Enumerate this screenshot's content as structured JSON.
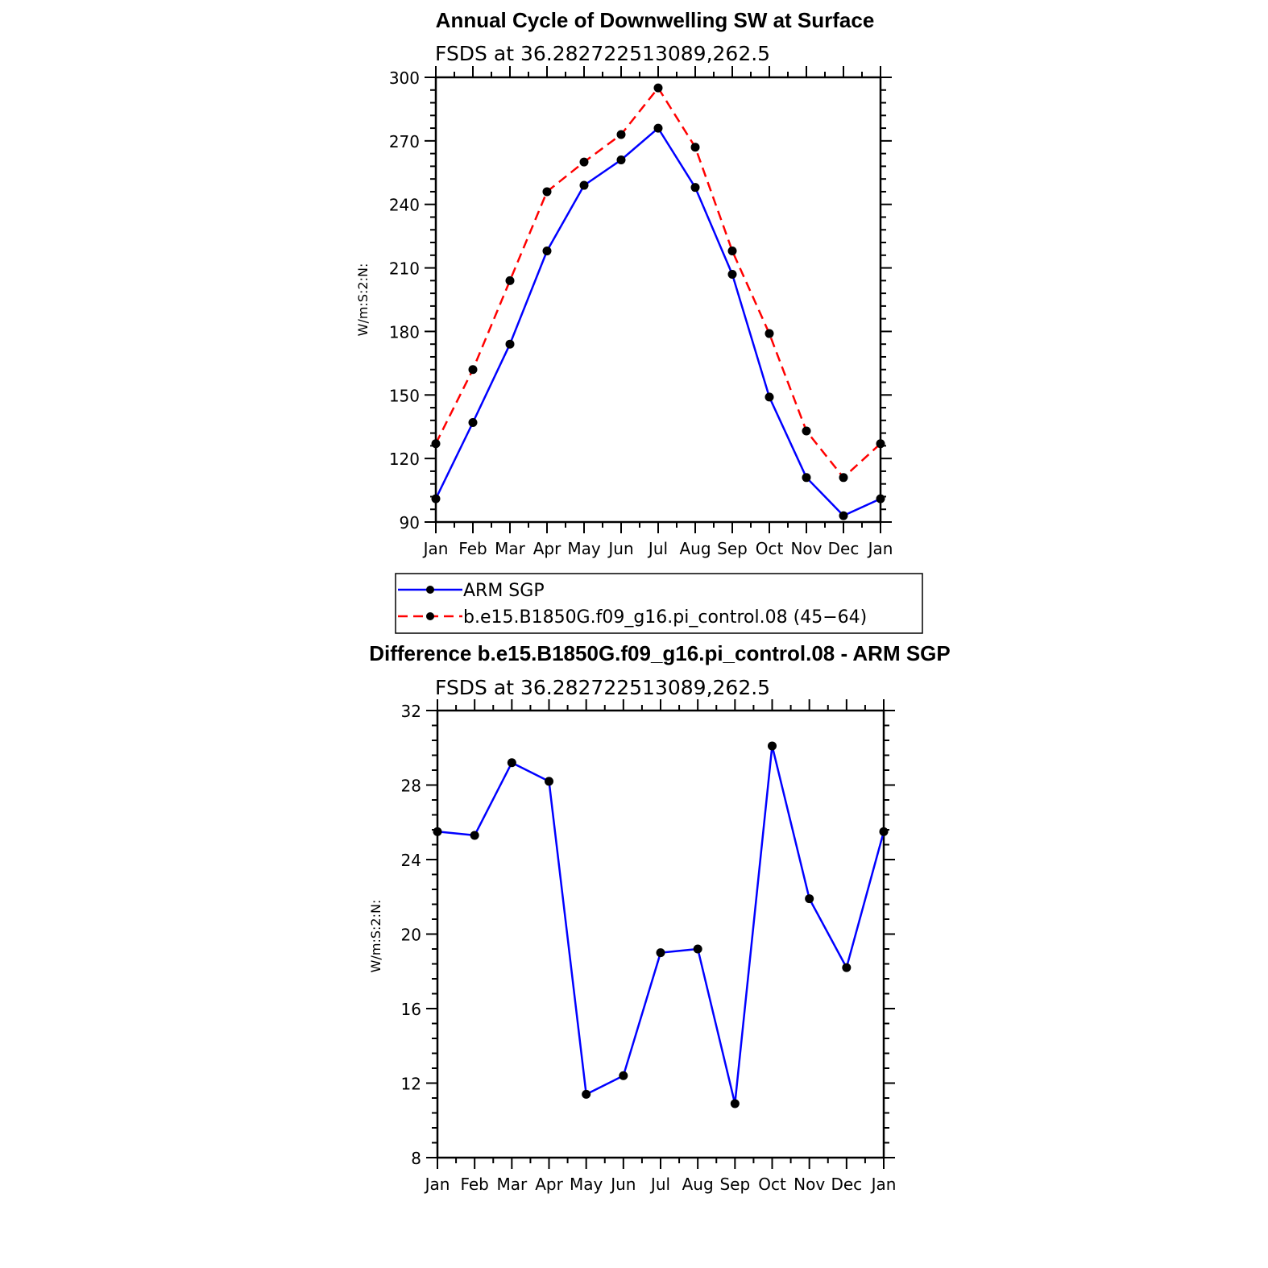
{
  "chart_data": [
    {
      "type": "line",
      "title": "Annual Cycle of Downwelling SW at Surface",
      "subtitle": "FSDS at 36.282722513089,262.5",
      "ylabel": "W/m:S:2:N:",
      "xlabel": "",
      "categories": [
        "Jan",
        "Feb",
        "Mar",
        "Apr",
        "May",
        "Jun",
        "Jul",
        "Aug",
        "Sep",
        "Oct",
        "Nov",
        "Dec",
        "Jan"
      ],
      "ylim": [
        90,
        300
      ],
      "yticks": [
        90,
        120,
        150,
        180,
        210,
        240,
        270,
        300
      ],
      "grid": false,
      "legend_position": "below",
      "series": [
        {
          "name": "ARM SGP",
          "color": "#0000ff",
          "dash": "solid",
          "marker": "circle",
          "values": [
            101,
            137,
            174,
            218,
            249,
            261,
            276,
            248,
            207,
            149,
            111,
            93,
            101
          ]
        },
        {
          "name": "b.e15.B1850G.f09_g16.pi_control.08 (45−64)",
          "color": "#ff0000",
          "dash": "dashed",
          "marker": "circle",
          "values": [
            127,
            162,
            204,
            246,
            260,
            273,
            295,
            267,
            218,
            179,
            133,
            111,
            127
          ]
        }
      ]
    },
    {
      "type": "line",
      "title": "Difference b.e15.B1850G.f09_g16.pi_control.08 - ARM SGP",
      "subtitle": "FSDS at 36.282722513089,262.5",
      "ylabel": "W/m:S:2:N:",
      "xlabel": "",
      "categories": [
        "Jan",
        "Feb",
        "Mar",
        "Apr",
        "May",
        "Jun",
        "Jul",
        "Aug",
        "Sep",
        "Oct",
        "Nov",
        "Dec",
        "Jan"
      ],
      "ylim": [
        8,
        32
      ],
      "yticks": [
        8,
        12,
        16,
        20,
        24,
        28,
        32
      ],
      "grid": false,
      "series": [
        {
          "color": "#0000ff",
          "dash": "solid",
          "marker": "circle",
          "values": [
            25.5,
            25.3,
            29.2,
            28.2,
            11.4,
            12.4,
            19.0,
            19.2,
            10.9,
            30.1,
            21.9,
            18.2,
            25.5
          ]
        }
      ]
    }
  ]
}
